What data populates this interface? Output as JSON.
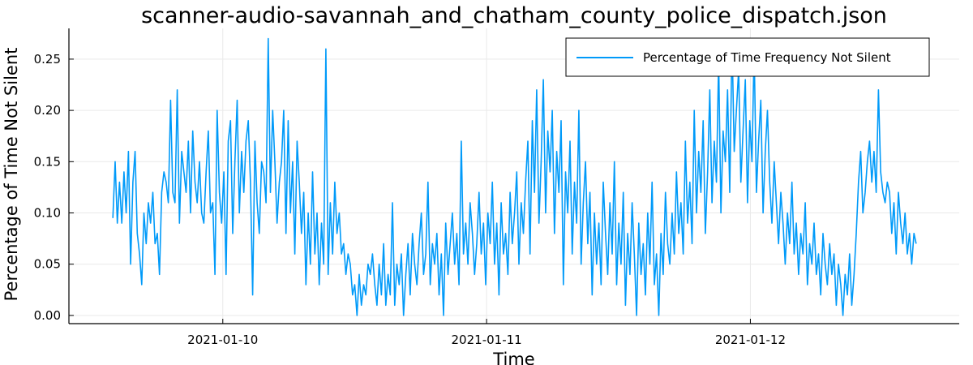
{
  "chart_data": {
    "type": "line",
    "title": "scanner-audio-savannah_and_chatham_county_police_dispatch.json",
    "xlabel": "Time",
    "ylabel": "Percentage of Time Not Silent",
    "x_ticks": [
      "2021-01-10",
      "2021-01-11",
      "2021-01-12"
    ],
    "y_ticks": [
      "0.00",
      "0.05",
      "0.10",
      "0.15",
      "0.20",
      "0.25"
    ],
    "y_tick_values": [
      0.0,
      0.05,
      0.1,
      0.15,
      0.2,
      0.25
    ],
    "ylim": [
      -0.008,
      0.28
    ],
    "xlim": [
      "2021-01-09T10:00",
      "2021-01-12T19:00"
    ],
    "x_start": "2021-01-09T14:00",
    "x_end": "2021-01-12T15:05",
    "grid": true,
    "legend_position": "top-right",
    "colors": {
      "series": "#009AF9",
      "grid": "#e9e9e9",
      "axis": "#000000"
    },
    "series": [
      {
        "name": "Percentage of Time Frequency Not Silent",
        "values": [
          0.095,
          0.15,
          0.09,
          0.13,
          0.09,
          0.14,
          0.1,
          0.16,
          0.05,
          0.13,
          0.16,
          0.08,
          0.06,
          0.03,
          0.1,
          0.07,
          0.11,
          0.09,
          0.12,
          0.07,
          0.08,
          0.04,
          0.12,
          0.14,
          0.13,
          0.11,
          0.21,
          0.12,
          0.11,
          0.22,
          0.09,
          0.16,
          0.14,
          0.12,
          0.17,
          0.1,
          0.18,
          0.13,
          0.11,
          0.15,
          0.1,
          0.09,
          0.14,
          0.18,
          0.1,
          0.11,
          0.04,
          0.2,
          0.12,
          0.09,
          0.14,
          0.04,
          0.17,
          0.19,
          0.08,
          0.15,
          0.21,
          0.1,
          0.16,
          0.12,
          0.17,
          0.19,
          0.13,
          0.02,
          0.17,
          0.11,
          0.08,
          0.15,
          0.14,
          0.11,
          0.27,
          0.12,
          0.2,
          0.15,
          0.09,
          0.13,
          0.15,
          0.2,
          0.08,
          0.19,
          0.1,
          0.15,
          0.06,
          0.17,
          0.13,
          0.08,
          0.12,
          0.03,
          0.1,
          0.05,
          0.14,
          0.06,
          0.1,
          0.03,
          0.09,
          0.05,
          0.26,
          0.04,
          0.11,
          0.06,
          0.13,
          0.08,
          0.1,
          0.06,
          0.07,
          0.04,
          0.06,
          0.05,
          0.02,
          0.03,
          0.0,
          0.04,
          0.01,
          0.03,
          0.02,
          0.05,
          0.04,
          0.06,
          0.03,
          0.01,
          0.05,
          0.02,
          0.07,
          0.01,
          0.04,
          0.02,
          0.11,
          0.01,
          0.05,
          0.03,
          0.06,
          0.0,
          0.04,
          0.07,
          0.02,
          0.08,
          0.05,
          0.03,
          0.07,
          0.1,
          0.04,
          0.06,
          0.13,
          0.03,
          0.07,
          0.05,
          0.08,
          0.02,
          0.06,
          0.0,
          0.09,
          0.04,
          0.07,
          0.1,
          0.05,
          0.08,
          0.03,
          0.17,
          0.06,
          0.09,
          0.05,
          0.11,
          0.08,
          0.04,
          0.07,
          0.12,
          0.06,
          0.09,
          0.03,
          0.1,
          0.07,
          0.13,
          0.05,
          0.09,
          0.02,
          0.11,
          0.06,
          0.08,
          0.04,
          0.12,
          0.07,
          0.1,
          0.14,
          0.05,
          0.11,
          0.08,
          0.13,
          0.17,
          0.06,
          0.19,
          0.12,
          0.22,
          0.09,
          0.15,
          0.23,
          0.1,
          0.18,
          0.14,
          0.2,
          0.08,
          0.16,
          0.12,
          0.19,
          0.03,
          0.14,
          0.1,
          0.17,
          0.06,
          0.13,
          0.09,
          0.2,
          0.05,
          0.11,
          0.15,
          0.07,
          0.12,
          0.02,
          0.1,
          0.05,
          0.09,
          0.03,
          0.13,
          0.08,
          0.04,
          0.11,
          0.06,
          0.15,
          0.03,
          0.09,
          0.05,
          0.12,
          0.01,
          0.08,
          0.04,
          0.11,
          0.06,
          0.0,
          0.09,
          0.04,
          0.07,
          0.02,
          0.1,
          0.05,
          0.13,
          0.03,
          0.06,
          0.0,
          0.08,
          0.04,
          0.12,
          0.07,
          0.05,
          0.1,
          0.06,
          0.14,
          0.08,
          0.11,
          0.06,
          0.17,
          0.09,
          0.13,
          0.07,
          0.2,
          0.1,
          0.16,
          0.12,
          0.19,
          0.08,
          0.14,
          0.22,
          0.11,
          0.17,
          0.13,
          0.25,
          0.1,
          0.18,
          0.15,
          0.22,
          0.12,
          0.27,
          0.16,
          0.2,
          0.24,
          0.13,
          0.18,
          0.23,
          0.11,
          0.19,
          0.15,
          0.26,
          0.12,
          0.17,
          0.21,
          0.1,
          0.16,
          0.2,
          0.13,
          0.09,
          0.15,
          0.11,
          0.07,
          0.12,
          0.09,
          0.05,
          0.1,
          0.07,
          0.13,
          0.06,
          0.09,
          0.04,
          0.08,
          0.06,
          0.11,
          0.03,
          0.07,
          0.05,
          0.09,
          0.04,
          0.06,
          0.02,
          0.08,
          0.05,
          0.03,
          0.07,
          0.04,
          0.06,
          0.01,
          0.05,
          0.03,
          0.0,
          0.04,
          0.02,
          0.06,
          0.01,
          0.04,
          0.08,
          0.13,
          0.16,
          0.1,
          0.12,
          0.15,
          0.17,
          0.13,
          0.16,
          0.12,
          0.22,
          0.14,
          0.12,
          0.11,
          0.13,
          0.12,
          0.08,
          0.11,
          0.06,
          0.12,
          0.09,
          0.07,
          0.1,
          0.06,
          0.08,
          0.05,
          0.08,
          0.07
        ]
      }
    ]
  }
}
